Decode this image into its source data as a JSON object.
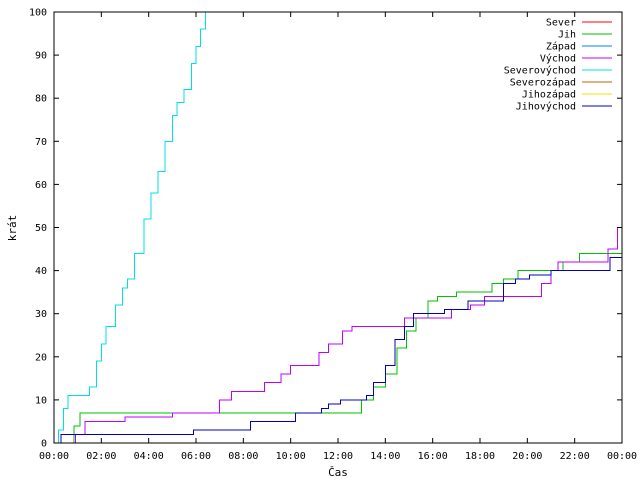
{
  "chart_data": {
    "type": "line",
    "title": "",
    "xlabel": "Čas",
    "ylabel": "krát",
    "xlim": [
      0,
      24
    ],
    "ylim": [
      0,
      100
    ],
    "grid": false,
    "legend_position": "top-right",
    "x_ticks": [
      {
        "value": 0,
        "label": "00:00"
      },
      {
        "value": 2,
        "label": "02:00"
      },
      {
        "value": 4,
        "label": "04:00"
      },
      {
        "value": 6,
        "label": "06:00"
      },
      {
        "value": 8,
        "label": "08:00"
      },
      {
        "value": 10,
        "label": "10:00"
      },
      {
        "value": 12,
        "label": "12:00"
      },
      {
        "value": 14,
        "label": "14:00"
      },
      {
        "value": 16,
        "label": "16:00"
      },
      {
        "value": 18,
        "label": "18:00"
      },
      {
        "value": 20,
        "label": "20:00"
      },
      {
        "value": 22,
        "label": "22:00"
      },
      {
        "value": 24,
        "label": "00:00"
      }
    ],
    "y_ticks": [
      0,
      10,
      20,
      30,
      40,
      50,
      60,
      70,
      80,
      90,
      100
    ],
    "series": [
      {
        "name": "Sever",
        "color": "#ff0000",
        "points": []
      },
      {
        "name": "Jih",
        "color": "#00c000",
        "points": [
          [
            0,
            0
          ],
          [
            0.6,
            0
          ],
          [
            0.85,
            4
          ],
          [
            1.1,
            7
          ],
          [
            5.5,
            7
          ],
          [
            6.4,
            7
          ],
          [
            12.5,
            7
          ],
          [
            13.0,
            10
          ],
          [
            13.5,
            13
          ],
          [
            14.0,
            16
          ],
          [
            14.5,
            22
          ],
          [
            14.9,
            26
          ],
          [
            15.3,
            29
          ],
          [
            15.8,
            33
          ],
          [
            16.2,
            34
          ],
          [
            17.0,
            35
          ],
          [
            18.5,
            37
          ],
          [
            19.0,
            38
          ],
          [
            19.6,
            40
          ],
          [
            21.0,
            40
          ],
          [
            21.5,
            42
          ],
          [
            22.2,
            44
          ],
          [
            24,
            44
          ]
        ]
      },
      {
        "name": "Západ",
        "color": "#0080ff",
        "points": []
      },
      {
        "name": "Východ",
        "color": "#c000ff",
        "points": [
          [
            0,
            0
          ],
          [
            0.8,
            0
          ],
          [
            0.9,
            2
          ],
          [
            1.3,
            5
          ],
          [
            2.8,
            5
          ],
          [
            3.0,
            6
          ],
          [
            4.9,
            6
          ],
          [
            5.0,
            7
          ],
          [
            6.7,
            7
          ],
          [
            7.0,
            10
          ],
          [
            7.5,
            12
          ],
          [
            8.4,
            12
          ],
          [
            8.9,
            14
          ],
          [
            9.6,
            16
          ],
          [
            10.0,
            18
          ],
          [
            10.9,
            18
          ],
          [
            11.2,
            21
          ],
          [
            11.6,
            23
          ],
          [
            12.2,
            26
          ],
          [
            12.6,
            27
          ],
          [
            14.4,
            27
          ],
          [
            14.8,
            29
          ],
          [
            16.2,
            29
          ],
          [
            16.8,
            31
          ],
          [
            17.6,
            32
          ],
          [
            18.2,
            34
          ],
          [
            20.2,
            34
          ],
          [
            20.6,
            37
          ],
          [
            21.0,
            40
          ],
          [
            21.3,
            42
          ],
          [
            23.0,
            42
          ],
          [
            23.4,
            45
          ],
          [
            23.8,
            50
          ],
          [
            24,
            52
          ]
        ]
      },
      {
        "name": "Severovýchod",
        "color": "#00e0e0",
        "points": [
          [
            0,
            0
          ],
          [
            0.2,
            3
          ],
          [
            0.4,
            8
          ],
          [
            0.6,
            11
          ],
          [
            1.3,
            11
          ],
          [
            1.5,
            13
          ],
          [
            1.8,
            19
          ],
          [
            2.0,
            23
          ],
          [
            2.2,
            27
          ],
          [
            2.6,
            32
          ],
          [
            2.9,
            36
          ],
          [
            3.1,
            38
          ],
          [
            3.4,
            44
          ],
          [
            3.8,
            52
          ],
          [
            4.1,
            58
          ],
          [
            4.4,
            63
          ],
          [
            4.7,
            70
          ],
          [
            5.0,
            76
          ],
          [
            5.2,
            79
          ],
          [
            5.5,
            82
          ],
          [
            5.8,
            88
          ],
          [
            6.0,
            92
          ],
          [
            6.2,
            96
          ],
          [
            6.4,
            100
          ]
        ]
      },
      {
        "name": "Severozápad",
        "color": "#c06000",
        "points": []
      },
      {
        "name": "Jihozápad",
        "color": "#f0e000",
        "points": []
      },
      {
        "name": "Jihovýchod",
        "color": "#0000c0",
        "points": [
          [
            0,
            0
          ],
          [
            0.3,
            2
          ],
          [
            5.8,
            2
          ],
          [
            5.9,
            3
          ],
          [
            8.1,
            3
          ],
          [
            8.3,
            5
          ],
          [
            10.0,
            5
          ],
          [
            10.2,
            7
          ],
          [
            11.3,
            8
          ],
          [
            11.6,
            9
          ],
          [
            12.1,
            10
          ],
          [
            13.2,
            11
          ],
          [
            13.5,
            14
          ],
          [
            14.0,
            18
          ],
          [
            14.4,
            24
          ],
          [
            14.8,
            27
          ],
          [
            15.2,
            30
          ],
          [
            15.8,
            30
          ],
          [
            16.5,
            31
          ],
          [
            17.5,
            33
          ],
          [
            19.0,
            37
          ],
          [
            19.5,
            38
          ],
          [
            20.1,
            39
          ],
          [
            20.5,
            39
          ],
          [
            21.0,
            40
          ],
          [
            23.5,
            43
          ],
          [
            24,
            43
          ]
        ]
      }
    ]
  }
}
